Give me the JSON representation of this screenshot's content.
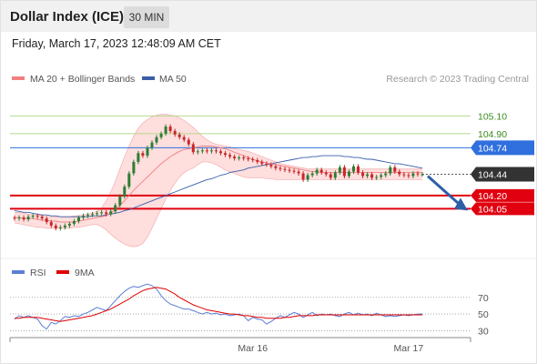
{
  "header": {
    "title": "Dollar Index (ICE)",
    "timeframe": "30 MIN"
  },
  "datetime": "Friday, March 17, 2023 12:48:09 AM CET",
  "legend": {
    "ma20_label": "MA 20 + Bollinger Bands",
    "ma50_label": "MA 50",
    "credit": "Research © 2023 Trading Central"
  },
  "colors": {
    "up": "#2e7d32",
    "down": "#c62828",
    "ma20": "#f08080",
    "ma50": "#3a5ea8",
    "band_fill": "#ffd8d8",
    "green_level": "#b5d98c",
    "blue_level": "#2f6fde",
    "red_level": "#e0000f",
    "current": "#333333",
    "rsi": "#5b7fd6",
    "ma9": "#e00000"
  },
  "chart_data": [
    {
      "type": "candlestick",
      "title": "Dollar Index (ICE)",
      "timeframe": "30 MIN",
      "ylim": [
        103.55,
        105.3
      ],
      "x_ticks": [
        "Mar 16",
        "Mar 17"
      ],
      "levels": [
        {
          "label": "105.10",
          "value": 105.1,
          "kind": "resistance"
        },
        {
          "label": "104.90",
          "value": 104.9,
          "kind": "resistance"
        },
        {
          "label": "104.74",
          "value": 104.74,
          "kind": "pivot"
        },
        {
          "label": "104.44",
          "value": 104.44,
          "kind": "current"
        },
        {
          "label": "104.20",
          "value": 104.2,
          "kind": "support"
        },
        {
          "label": "104.05",
          "value": 104.05,
          "kind": "support"
        }
      ],
      "close": [
        103.94,
        103.95,
        103.93,
        103.96,
        103.97,
        103.96,
        103.94,
        103.9,
        103.86,
        103.83,
        103.84,
        103.86,
        103.88,
        103.91,
        103.95,
        103.97,
        103.98,
        103.99,
        104.0,
        104.01,
        103.99,
        104.02,
        104.09,
        104.19,
        104.3,
        104.45,
        104.58,
        104.68,
        104.65,
        104.74,
        104.8,
        104.86,
        104.9,
        104.98,
        104.93,
        104.89,
        104.86,
        104.83,
        104.78,
        104.69,
        104.7,
        104.71,
        104.7,
        104.71,
        104.7,
        104.68,
        104.66,
        104.64,
        104.62,
        104.63,
        104.62,
        104.61,
        104.6,
        104.58,
        104.56,
        104.55,
        104.53,
        104.51,
        104.5,
        104.49,
        104.48,
        104.47,
        104.45,
        104.38,
        104.43,
        104.45,
        104.49,
        104.46,
        104.44,
        104.4,
        104.46,
        104.52,
        104.42,
        104.47,
        104.53,
        104.46,
        104.42,
        104.44,
        104.4,
        104.41,
        104.43,
        104.45,
        104.52,
        104.47,
        104.44,
        104.43,
        104.42,
        104.45,
        104.44,
        104.44
      ],
      "ma20": [
        103.95,
        103.95,
        103.94,
        103.94,
        103.94,
        103.93,
        103.92,
        103.92,
        103.91,
        103.91,
        103.9,
        103.9,
        103.9,
        103.9,
        103.91,
        103.92,
        103.93,
        103.94,
        103.95,
        103.96,
        103.97,
        104.0,
        104.04,
        104.09,
        104.14,
        104.2,
        104.26,
        104.31,
        104.36,
        104.41,
        104.46,
        104.51,
        104.56,
        104.6,
        104.64,
        104.67,
        104.7,
        104.72,
        104.73,
        104.74,
        104.75,
        104.76,
        104.76,
        104.76,
        104.75,
        104.74,
        104.73,
        104.71,
        104.69,
        104.67,
        104.65,
        104.63,
        104.61,
        104.59,
        104.58,
        104.57,
        104.56,
        104.55,
        104.54,
        104.53,
        104.52,
        104.51,
        104.5,
        104.49,
        104.48,
        104.47,
        104.47,
        104.46,
        104.46,
        104.46,
        104.46,
        104.46,
        104.46,
        104.46,
        104.46,
        104.46,
        104.46,
        104.46,
        104.46,
        104.46,
        104.46,
        104.46,
        104.46,
        104.46,
        104.46,
        104.46,
        104.46,
        104.46,
        104.46,
        104.46
      ],
      "band_upper": [
        104.01,
        104.01,
        104.0,
        103.99,
        103.98,
        103.98,
        103.97,
        103.96,
        103.96,
        103.96,
        103.96,
        103.96,
        103.96,
        103.97,
        103.97,
        103.98,
        103.99,
        104.0,
        104.02,
        104.06,
        104.14,
        104.24,
        104.36,
        104.5,
        104.64,
        104.76,
        104.87,
        104.96,
        105.02,
        105.06,
        105.09,
        105.11,
        105.12,
        105.12,
        105.11,
        105.1,
        105.08,
        105.05,
        105.01,
        104.97,
        104.92,
        104.87,
        104.83,
        104.8,
        104.78,
        104.77,
        104.76,
        104.75,
        104.73,
        104.72,
        104.71,
        104.7,
        104.68,
        104.66,
        104.64,
        104.62,
        104.6,
        104.58,
        104.56,
        104.55,
        104.54,
        104.53,
        104.52,
        104.51,
        104.5,
        104.5,
        104.5,
        104.5,
        104.5,
        104.5,
        104.5,
        104.5,
        104.5,
        104.5,
        104.5,
        104.5,
        104.5,
        104.5,
        104.5,
        104.5,
        104.5,
        104.5,
        104.5,
        104.5,
        104.5,
        104.5,
        104.5,
        104.5,
        104.5,
        104.5
      ],
      "band_lower": [
        103.89,
        103.88,
        103.87,
        103.86,
        103.85,
        103.84,
        103.84,
        103.83,
        103.83,
        103.83,
        103.83,
        103.83,
        103.83,
        103.84,
        103.84,
        103.85,
        103.86,
        103.87,
        103.87,
        103.85,
        103.81,
        103.76,
        103.72,
        103.68,
        103.65,
        103.63,
        103.62,
        103.63,
        103.66,
        103.73,
        103.83,
        103.94,
        104.05,
        104.16,
        104.26,
        104.34,
        104.41,
        104.46,
        104.49,
        104.51,
        104.55,
        104.58,
        104.58,
        104.57,
        104.55,
        104.52,
        104.49,
        104.47,
        104.45,
        104.43,
        104.41,
        104.4,
        104.4,
        104.4,
        104.4,
        104.39,
        104.39,
        104.38,
        104.38,
        104.38,
        104.38,
        104.38,
        104.38,
        104.38,
        104.38,
        104.38,
        104.38,
        104.38,
        104.38,
        104.38,
        104.38,
        104.38,
        104.38,
        104.38,
        104.38,
        104.38,
        104.38,
        104.38,
        104.38,
        104.38,
        104.38,
        104.38,
        104.38,
        104.38,
        104.38,
        104.38,
        104.38,
        104.38,
        104.38,
        104.38
      ],
      "ma50": [
        104.03,
        104.02,
        104.01,
        104.01,
        104.0,
        103.99,
        103.98,
        103.98,
        103.97,
        103.97,
        103.96,
        103.96,
        103.96,
        103.96,
        103.96,
        103.96,
        103.96,
        103.97,
        103.97,
        103.97,
        103.98,
        103.99,
        104.0,
        104.01,
        104.03,
        104.04,
        104.06,
        104.08,
        104.1,
        104.12,
        104.14,
        104.16,
        104.18,
        104.2,
        104.22,
        104.24,
        104.26,
        104.28,
        104.3,
        104.32,
        104.34,
        104.36,
        104.38,
        104.39,
        104.41,
        104.43,
        104.44,
        104.46,
        104.47,
        104.48,
        104.49,
        104.51,
        104.52,
        104.53,
        104.54,
        104.55,
        104.56,
        104.57,
        104.58,
        104.59,
        104.6,
        104.61,
        104.62,
        104.63,
        104.63,
        104.64,
        104.64,
        104.65,
        104.65,
        104.65,
        104.65,
        104.65,
        104.64,
        104.64,
        104.63,
        104.63,
        104.62,
        104.61,
        104.61,
        104.6,
        104.59,
        104.58,
        104.57,
        104.56,
        104.56,
        104.55,
        104.54,
        104.53,
        104.52,
        104.51
      ]
    },
    {
      "type": "line",
      "title": "RSI",
      "series": [
        {
          "name": "RSI",
          "values": [
            44,
            48,
            46,
            48,
            46,
            44,
            36,
            32,
            40,
            38,
            42,
            47,
            46,
            48,
            47,
            50,
            52,
            55,
            58,
            56,
            54,
            60,
            66,
            72,
            77,
            81,
            83,
            82,
            84,
            86,
            84,
            80,
            72,
            66,
            62,
            60,
            58,
            56,
            56,
            54,
            52,
            50,
            52,
            50,
            51,
            49,
            50,
            48,
            49,
            50,
            48,
            42,
            46,
            44,
            43,
            38,
            41,
            45,
            48,
            46,
            49,
            52,
            50,
            46,
            49,
            52,
            48,
            50,
            49,
            50,
            48,
            47,
            50,
            52,
            49,
            51,
            49,
            50,
            48,
            51,
            49,
            47,
            48,
            47,
            48,
            49,
            48,
            49,
            50,
            50
          ]
        },
        {
          "name": "9MA",
          "values": [
            45,
            45,
            46,
            46,
            46,
            46,
            45,
            44,
            43,
            42,
            41,
            42,
            43,
            44,
            45,
            46,
            47,
            48,
            50,
            52,
            54,
            56,
            59,
            62,
            65,
            68,
            72,
            75,
            78,
            80,
            81,
            82,
            81,
            80,
            77,
            74,
            70,
            67,
            64,
            61,
            59,
            57,
            55,
            54,
            53,
            52,
            51,
            50,
            50,
            49,
            48,
            48,
            47,
            46,
            46,
            45,
            45,
            45,
            45,
            46,
            46,
            47,
            48,
            48,
            48,
            48,
            49,
            49,
            49,
            49,
            49,
            49,
            49,
            49,
            49,
            49,
            49,
            49,
            49,
            49,
            49,
            49,
            49,
            49,
            49,
            49,
            49,
            49,
            49,
            49
          ]
        }
      ],
      "ylim": [
        25,
        85
      ],
      "y_ticks": [
        70,
        50,
        30
      ]
    }
  ]
}
